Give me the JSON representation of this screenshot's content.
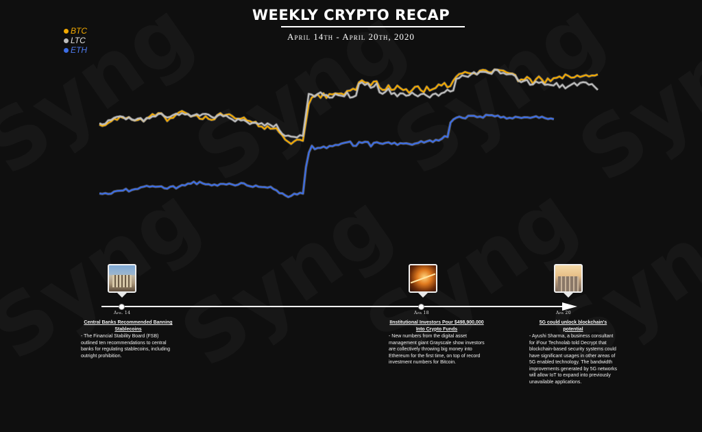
{
  "title": "WEEKLY CRYPTO RECAP",
  "subtitle": "April 14th - April 20th, 2020",
  "watermark": "Syng",
  "chart_data": {
    "type": "line",
    "grid": false,
    "axes_visible": false,
    "legend_position": "top-left",
    "x_start": "Apr 14",
    "x_end": "Apr 20",
    "series": [
      {
        "name": "BTC",
        "color": "#f2a900",
        "values": [
          0.64,
          0.627,
          0.634,
          0.655,
          0.67,
          0.695,
          0.683,
          0.714,
          0.703,
          0.697,
          0.709,
          0.685,
          0.677,
          0.682,
          0.694,
          0.669,
          0.697,
          0.713,
          0.738,
          0.722,
          0.746,
          0.745,
          0.714,
          0.672,
          0.699,
          0.702,
          0.732,
          0.753,
          0.766,
          0.751,
          0.737,
          0.714,
          0.723,
          0.726,
          0.694,
          0.69,
          0.717,
          0.692,
          0.683,
          0.689,
          0.728,
          0.746,
          0.722,
          0.731,
          0.736,
          0.719,
          0.697,
          0.693,
          0.695,
          0.706,
          0.678,
          0.672,
          0.658,
          0.666,
          0.623,
          0.622,
          0.598,
          0.626,
          0.601,
          0.603,
          0.606,
          0.568,
          0.541,
          0.5,
          0.48,
          0.46,
          0.483,
          0.5,
          0.499,
          0.489,
          0.659,
          0.83,
          0.89,
          0.906,
          0.92,
          0.889,
          0.93,
          0.887,
          0.924,
          0.92,
          0.93,
          0.926,
          0.929,
          0.917,
          0.952,
          0.956,
          0.973,
          0.961,
          1.032,
          1.051,
          1.031,
          1.028,
          1.004,
          1.039,
          1.042,
          0.983,
          0.962,
          0.963,
          1.005,
          0.962,
          0.966,
          1.002,
          0.979,
          0.96,
          0.969,
          0.935,
          0.959,
          0.99,
          0.996,
          0.958,
          0.941,
          0.992,
          0.956,
          0.968,
          0.98,
          1.012,
          1.003,
          1.027,
          0.986,
          0.997,
          1.047,
          1.084,
          1.11,
          1.115,
          1.129,
          1.119,
          1.114,
          1.117,
          1.106,
          1.14,
          1.148,
          1.144,
          1.126,
          1.124,
          1.151,
          1.148,
          1.144,
          1.141,
          1.125,
          1.116,
          1.114,
          1.101,
          1.043,
          1.059,
          1.055,
          1.083,
          1.063,
          1.019,
          1.06,
          1.087,
          1.059,
          1.024,
          1.068,
          1.043,
          1.071,
          1.074,
          1.087,
          1.069,
          1.106,
          1.092,
          1.075,
          1.078,
          1.096,
          1.082,
          1.091,
          1.1,
          1.087,
          1.096,
          1.095,
          1.106
        ]
      },
      {
        "name": "LTC",
        "color": "#bdbdbd",
        "values": [
          0.652,
          0.641,
          0.647,
          0.679,
          0.683,
          0.703,
          0.712,
          0.716,
          0.712,
          0.688,
          0.706,
          0.687,
          0.68,
          0.695,
          0.7,
          0.671,
          0.7,
          0.697,
          0.716,
          0.715,
          0.738,
          0.741,
          0.718,
          0.706,
          0.712,
          0.729,
          0.741,
          0.728,
          0.747,
          0.733,
          0.737,
          0.717,
          0.726,
          0.737,
          0.721,
          0.738,
          0.739,
          0.732,
          0.712,
          0.701,
          0.721,
          0.734,
          0.717,
          0.723,
          0.702,
          0.688,
          0.669,
          0.692,
          0.678,
          0.683,
          0.665,
          0.644,
          0.657,
          0.656,
          0.645,
          0.653,
          0.63,
          0.651,
          0.636,
          0.619,
          0.641,
          0.589,
          0.553,
          0.534,
          0.538,
          0.528,
          0.526,
          0.52,
          0.541,
          0.535,
          0.731,
          0.925,
          0.918,
          0.899,
          0.924,
          0.939,
          0.912,
          0.915,
          0.89,
          0.891,
          0.923,
          0.912,
          0.908,
          0.902,
          0.938,
          0.89,
          0.896,
          0.909,
          1.018,
          1.032,
          1.008,
          1.021,
          0.981,
          0.991,
          1.022,
          0.939,
          0.925,
          0.945,
          0.974,
          0.924,
          0.933,
          0.902,
          0.93,
          0.928,
          0.908,
          0.913,
          0.937,
          0.917,
          0.902,
          0.922,
          0.926,
          0.908,
          0.891,
          0.92,
          0.928,
          0.907,
          0.931,
          0.939,
          0.964,
          0.947,
          0.956,
          1.064,
          1.072,
          1.096,
          1.089,
          1.083,
          1.106,
          1.127,
          1.106,
          1.129,
          1.131,
          1.128,
          1.118,
          1.111,
          1.149,
          1.147,
          1.115,
          1.12,
          1.106,
          1.108,
          1.108,
          1.091,
          1.05,
          1.034,
          1.046,
          1.054,
          1.01,
          1.013,
          1.039,
          1.027,
          1.036,
          1.01,
          1.013,
          1.007,
          1.003,
          1.026,
          0.985,
          1.01,
          0.976,
          0.995,
          1.011,
          1.027,
          1.002,
          1.027,
          1.034,
          1.03,
          1.01,
          1.016,
          0.989,
          0.962
        ]
      },
      {
        "name": "ETH",
        "color": "#3d6ee6",
        "values": [
          0.0,
          -0.004,
          0.003,
          -0.005,
          -0.002,
          0.018,
          0.024,
          0.026,
          0.027,
          0.043,
          0.019,
          0.032,
          0.04,
          0.042,
          0.057,
          0.063,
          0.071,
          0.062,
          0.068,
          0.062,
          0.064,
          0.066,
          0.049,
          0.045,
          0.063,
          0.068,
          0.047,
          0.064,
          0.078,
          0.075,
          0.092,
          0.091,
          0.109,
          0.087,
          0.108,
          0.094,
          0.085,
          0.086,
          0.075,
          0.083,
          0.073,
          0.089,
          0.089,
          0.083,
          0.092,
          0.084,
          0.075,
          0.082,
          0.097,
          0.093,
          0.075,
          0.068,
          0.061,
          0.074,
          0.062,
          0.06,
          0.059,
          0.054,
          0.062,
          0.041,
          0.029,
          0.003,
          0.001,
          -0.018,
          -0.033,
          -0.022,
          -0.002,
          -0.009,
          0.006,
          -0.001,
          0.244,
          0.38,
          0.443,
          0.411,
          0.423,
          0.424,
          0.436,
          0.421,
          0.441,
          0.439,
          0.451,
          0.45,
          0.463,
          0.47,
          0.476,
          0.482,
          0.443,
          0.442,
          0.477,
          0.47,
          0.48,
          0.478,
          0.437,
          0.47,
          0.476,
          0.466,
          0.461,
          0.47,
          0.475,
          0.46,
          0.471,
          0.452,
          0.467,
          0.463,
          0.466,
          0.46,
          0.453,
          0.464,
          0.469,
          0.485,
          0.473,
          0.484,
          0.493,
          0.478,
          0.498,
          0.491,
          0.507,
          0.532,
          0.525,
          0.658,
          0.688,
          0.704,
          0.713,
          0.702,
          0.697,
          0.721,
          0.722,
          0.721,
          0.709,
          0.714,
          0.704,
          0.73,
          0.726,
          0.727,
          0.716,
          0.724,
          0.706,
          0.712,
          0.696,
          0.703,
          0.697,
          0.712,
          0.707,
          0.701,
          0.708,
          0.707,
          0.702,
          0.709,
          0.717,
          0.703,
          0.713,
          0.7,
          0.692,
          0.697,
          0.69
        ]
      }
    ],
    "events": [
      {
        "date": "Apr. 14",
        "title": "Central Banks Recommended Banning Stablecoins",
        "text": "- The Financial Stability Board (FSB) outlined ten recommendations to central banks for regulating stablecoins, including outright prohibition."
      },
      {
        "date": "Apr 18",
        "title": "IInstitutional Investors Pour $498,900,000 Into Crypto Funds",
        "text": "- New numbers from the digital asset management giant Grayscale show investors are collectively throwing big money into Ethereum for the first time, on top of record investment numbers for Bitcoin."
      },
      {
        "date": "Apr 20",
        "title": "5G could unlock blockchain's potential",
        "text": "- Ayushi Sharma, a business consultant for iFour Technolab told Decrypt that blockchain-based security systems could have significant usages in other areas of 5G enabled technology. The bandwidth improvements generated by 5G networks will allow IoT to expand into previously unavailable applications."
      }
    ]
  }
}
